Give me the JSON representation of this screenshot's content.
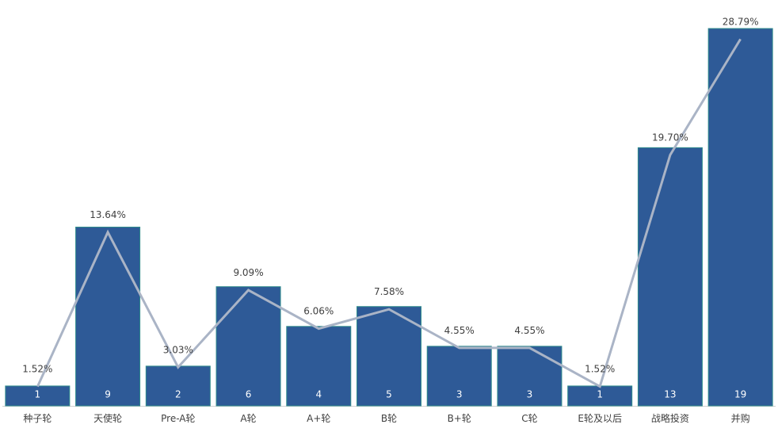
{
  "chart_data": {
    "type": "bar",
    "title": "",
    "xlabel": "",
    "ylabel": "",
    "categories": [
      "种子轮",
      "天使轮",
      "Pre-A轮",
      "A轮",
      "A+轮",
      "B轮",
      "B+轮",
      "C轮",
      "E轮及以后",
      "战略投资",
      "并购"
    ],
    "series": [
      {
        "type": "bar",
        "values": [
          1,
          9,
          2,
          6,
          4,
          5,
          3,
          3,
          1,
          13,
          19
        ],
        "color": "#2e5a97"
      },
      {
        "type": "line",
        "values": [
          1.52,
          13.64,
          3.03,
          9.09,
          6.06,
          7.58,
          4.55,
          4.55,
          1.52,
          19.7,
          28.79
        ],
        "labels": [
          "1.52%",
          "13.64%",
          "3.03%",
          "9.09%",
          "6.06%",
          "7.58%",
          "4.55%",
          "4.55%",
          "1.52%",
          "19.70%",
          "28.79%"
        ],
        "color": "#aab4c6"
      }
    ],
    "ylim": [
      0,
      19
    ],
    "y2lim": [
      0,
      30
    ],
    "grid": false,
    "legend": "none"
  }
}
